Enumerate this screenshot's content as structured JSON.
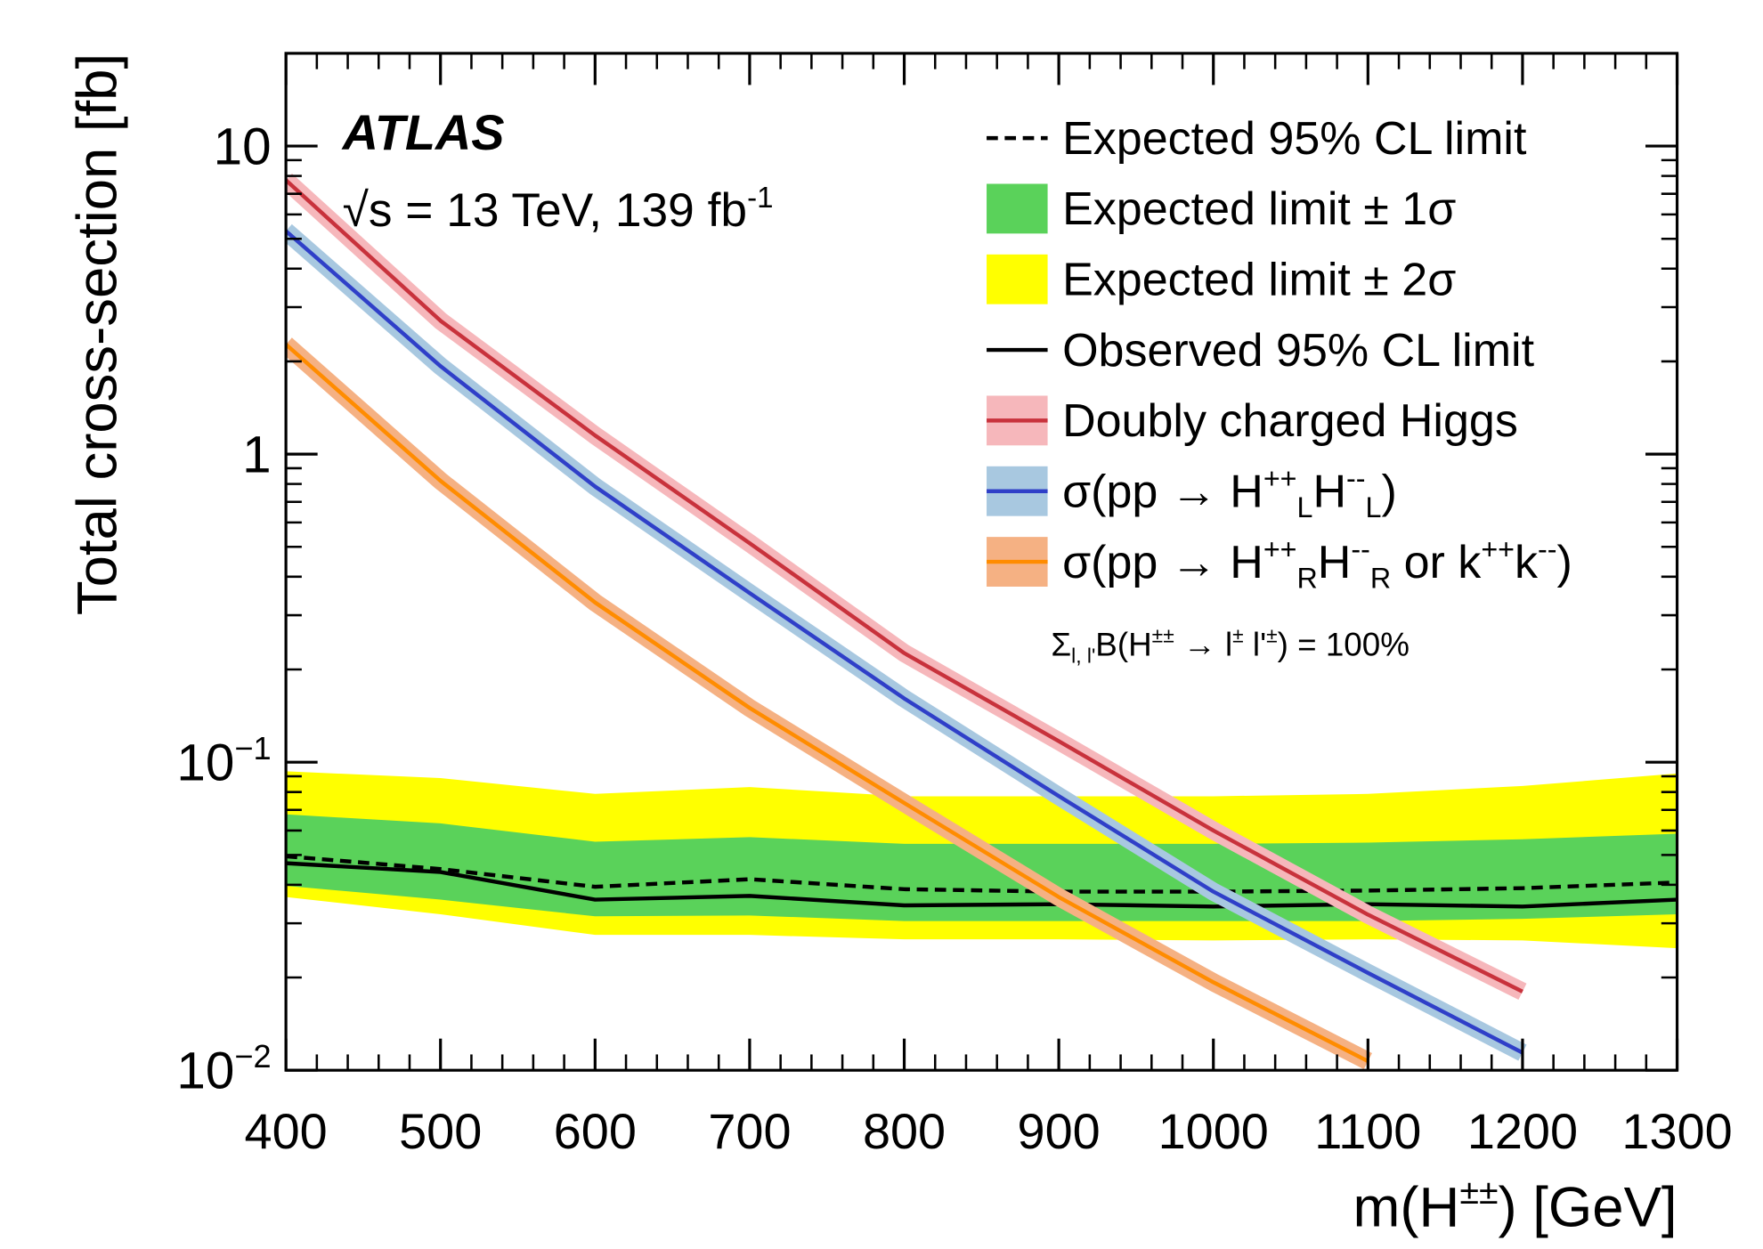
{
  "chart_data": {
    "type": "line",
    "xlabel": "m(H^{±±}) [GeV]",
    "ylabel": "Total cross-section [fb]",
    "annotations": [
      "ATLAS",
      "√s = 13 TeV, 139 fb^{-1}",
      "Σ_{l, l'}B(H^{±±} → l^{±} l'^{±}) = 100%"
    ],
    "log_y": true,
    "xlim": [
      400,
      1300
    ],
    "ylim": [
      0.01,
      20
    ],
    "xticks": [
      400,
      500,
      600,
      700,
      800,
      900,
      1000,
      1100,
      1200,
      1300
    ],
    "yticks": [
      {
        "value": 0.01,
        "label": "10^{−2}"
      },
      {
        "value": 0.1,
        "label": "10^{−1}"
      },
      1,
      10
    ],
    "x": [
      400,
      500,
      600,
      700,
      800,
      900,
      1000,
      1100,
      1200,
      1300
    ],
    "bands": [
      {
        "name": "Expected limit ± 2σ",
        "color": "#ffff00",
        "lower": [
          0.0365,
          0.0321,
          0.0275,
          0.0275,
          0.0266,
          0.0266,
          0.0264,
          0.0266,
          0.0264,
          0.0249
        ],
        "upper": [
          0.0934,
          0.0888,
          0.0789,
          0.083,
          0.0775,
          0.0775,
          0.0775,
          0.0789,
          0.0837,
          0.0919
        ]
      },
      {
        "name": "Expected limit ± 1σ",
        "color": "#5ad25a",
        "lower": [
          0.0397,
          0.0358,
          0.0316,
          0.0318,
          0.0305,
          0.0305,
          0.0305,
          0.0305,
          0.031,
          0.0321
        ],
        "upper": [
          0.0677,
          0.0633,
          0.0552,
          0.0571,
          0.0543,
          0.0543,
          0.0543,
          0.0548,
          0.0562,
          0.0586
        ]
      }
    ],
    "series": [
      {
        "name": "Expected 95% CL limit",
        "color": "#000000",
        "dash": true,
        "values": [
          0.0495,
          0.045,
          0.0394,
          0.0417,
          0.0387,
          0.038,
          0.038,
          0.0383,
          0.039,
          0.0407
        ]
      },
      {
        "name": "Observed 95% CL limit",
        "color": "#000000",
        "values": [
          0.047,
          0.044,
          0.0358,
          0.0368,
          0.0343,
          0.0346,
          0.034,
          0.0346,
          0.034,
          0.0358
        ]
      },
      {
        "name": "Doubly charged Higgs",
        "color": "#c8323c",
        "band_color": "#f6b7bb",
        "values": [
          7.75,
          2.71,
          1.15,
          0.514,
          0.226,
          0.117,
          0.06,
          0.032,
          0.018,
          null
        ]
      },
      {
        "name": "σ(pp → H^{++}_{L}H^{--}_{L})",
        "color": "#2f3fc8",
        "band_color": "#a8c8e0",
        "values": [
          5.3,
          1.93,
          0.785,
          0.354,
          0.161,
          0.0776,
          0.038,
          0.0207,
          0.0114,
          null
        ]
      },
      {
        "name": "σ(pp → H^{++}_{R}H^{--}_{R} or k^{++}k^{--})",
        "color": "#ff8c00",
        "band_color": "#f5b183",
        "values": [
          2.27,
          0.819,
          0.33,
          0.15,
          0.0737,
          0.0365,
          0.0193,
          0.0107,
          null,
          null
        ]
      }
    ]
  }
}
